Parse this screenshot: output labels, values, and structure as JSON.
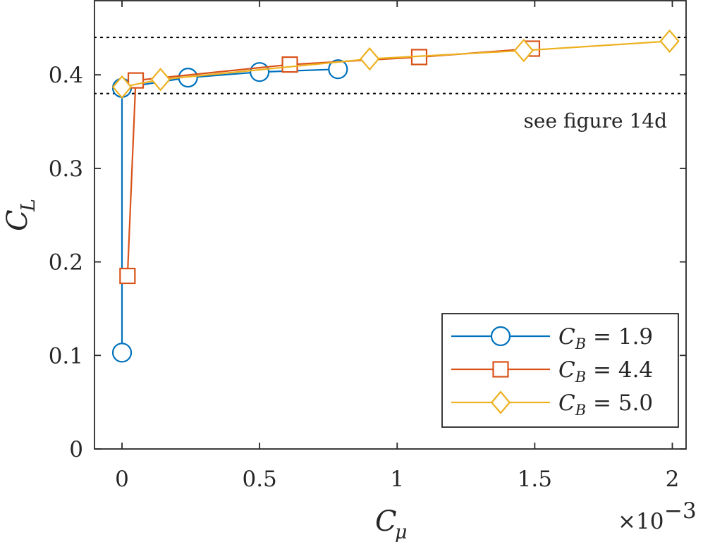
{
  "chart_data": {
    "type": "line",
    "title": "",
    "xlabel": "C_μ",
    "ylabel": "C_L",
    "x_exponent_label": "×10",
    "x_exponent_power": "−3",
    "xlim": [
      -0.1,
      2.05
    ],
    "ylim": [
      0,
      0.48
    ],
    "xticks": [
      0,
      0.5,
      1,
      1.5,
      2
    ],
    "xtick_labels": [
      "0",
      "0.5",
      "1",
      "1.5",
      "2"
    ],
    "yticks": [
      0,
      0.1,
      0.2,
      0.3,
      0.4
    ],
    "ytick_labels": [
      "0",
      "0.1",
      "0.2",
      "0.3",
      "0.4"
    ],
    "grid": false,
    "reference_lines": [
      {
        "y": 0.44,
        "style": "dotted"
      },
      {
        "y": 0.38,
        "style": "dotted"
      }
    ],
    "annotation": "see figure 14d",
    "legend_position": "bottom-right",
    "series": [
      {
        "name": "C_B = 1.9",
        "legend_base": "C",
        "legend_sub": "B",
        "legend_value": " = 1.9",
        "marker": "circle",
        "color": "#0072BD",
        "x": [
          0,
          0,
          0.24,
          0.5,
          0.785
        ],
        "y": [
          0.103,
          0.386,
          0.397,
          0.403,
          0.406
        ]
      },
      {
        "name": "C_B = 4.4",
        "legend_base": "C",
        "legend_sub": "B",
        "legend_value": " = 4.4",
        "marker": "square",
        "color": "#D95319",
        "x": [
          0.02,
          0.05,
          0.61,
          1.08,
          1.49
        ],
        "y": [
          0.185,
          0.394,
          0.411,
          0.419,
          0.428
        ]
      },
      {
        "name": "C_B = 5.0",
        "legend_base": "C",
        "legend_sub": "B",
        "legend_value": " = 5.0",
        "marker": "diamond",
        "color": "#EDB120",
        "x": [
          0,
          0.14,
          0.9,
          1.46,
          1.99
        ],
        "y": [
          0.387,
          0.395,
          0.417,
          0.426,
          0.436
        ]
      }
    ]
  }
}
